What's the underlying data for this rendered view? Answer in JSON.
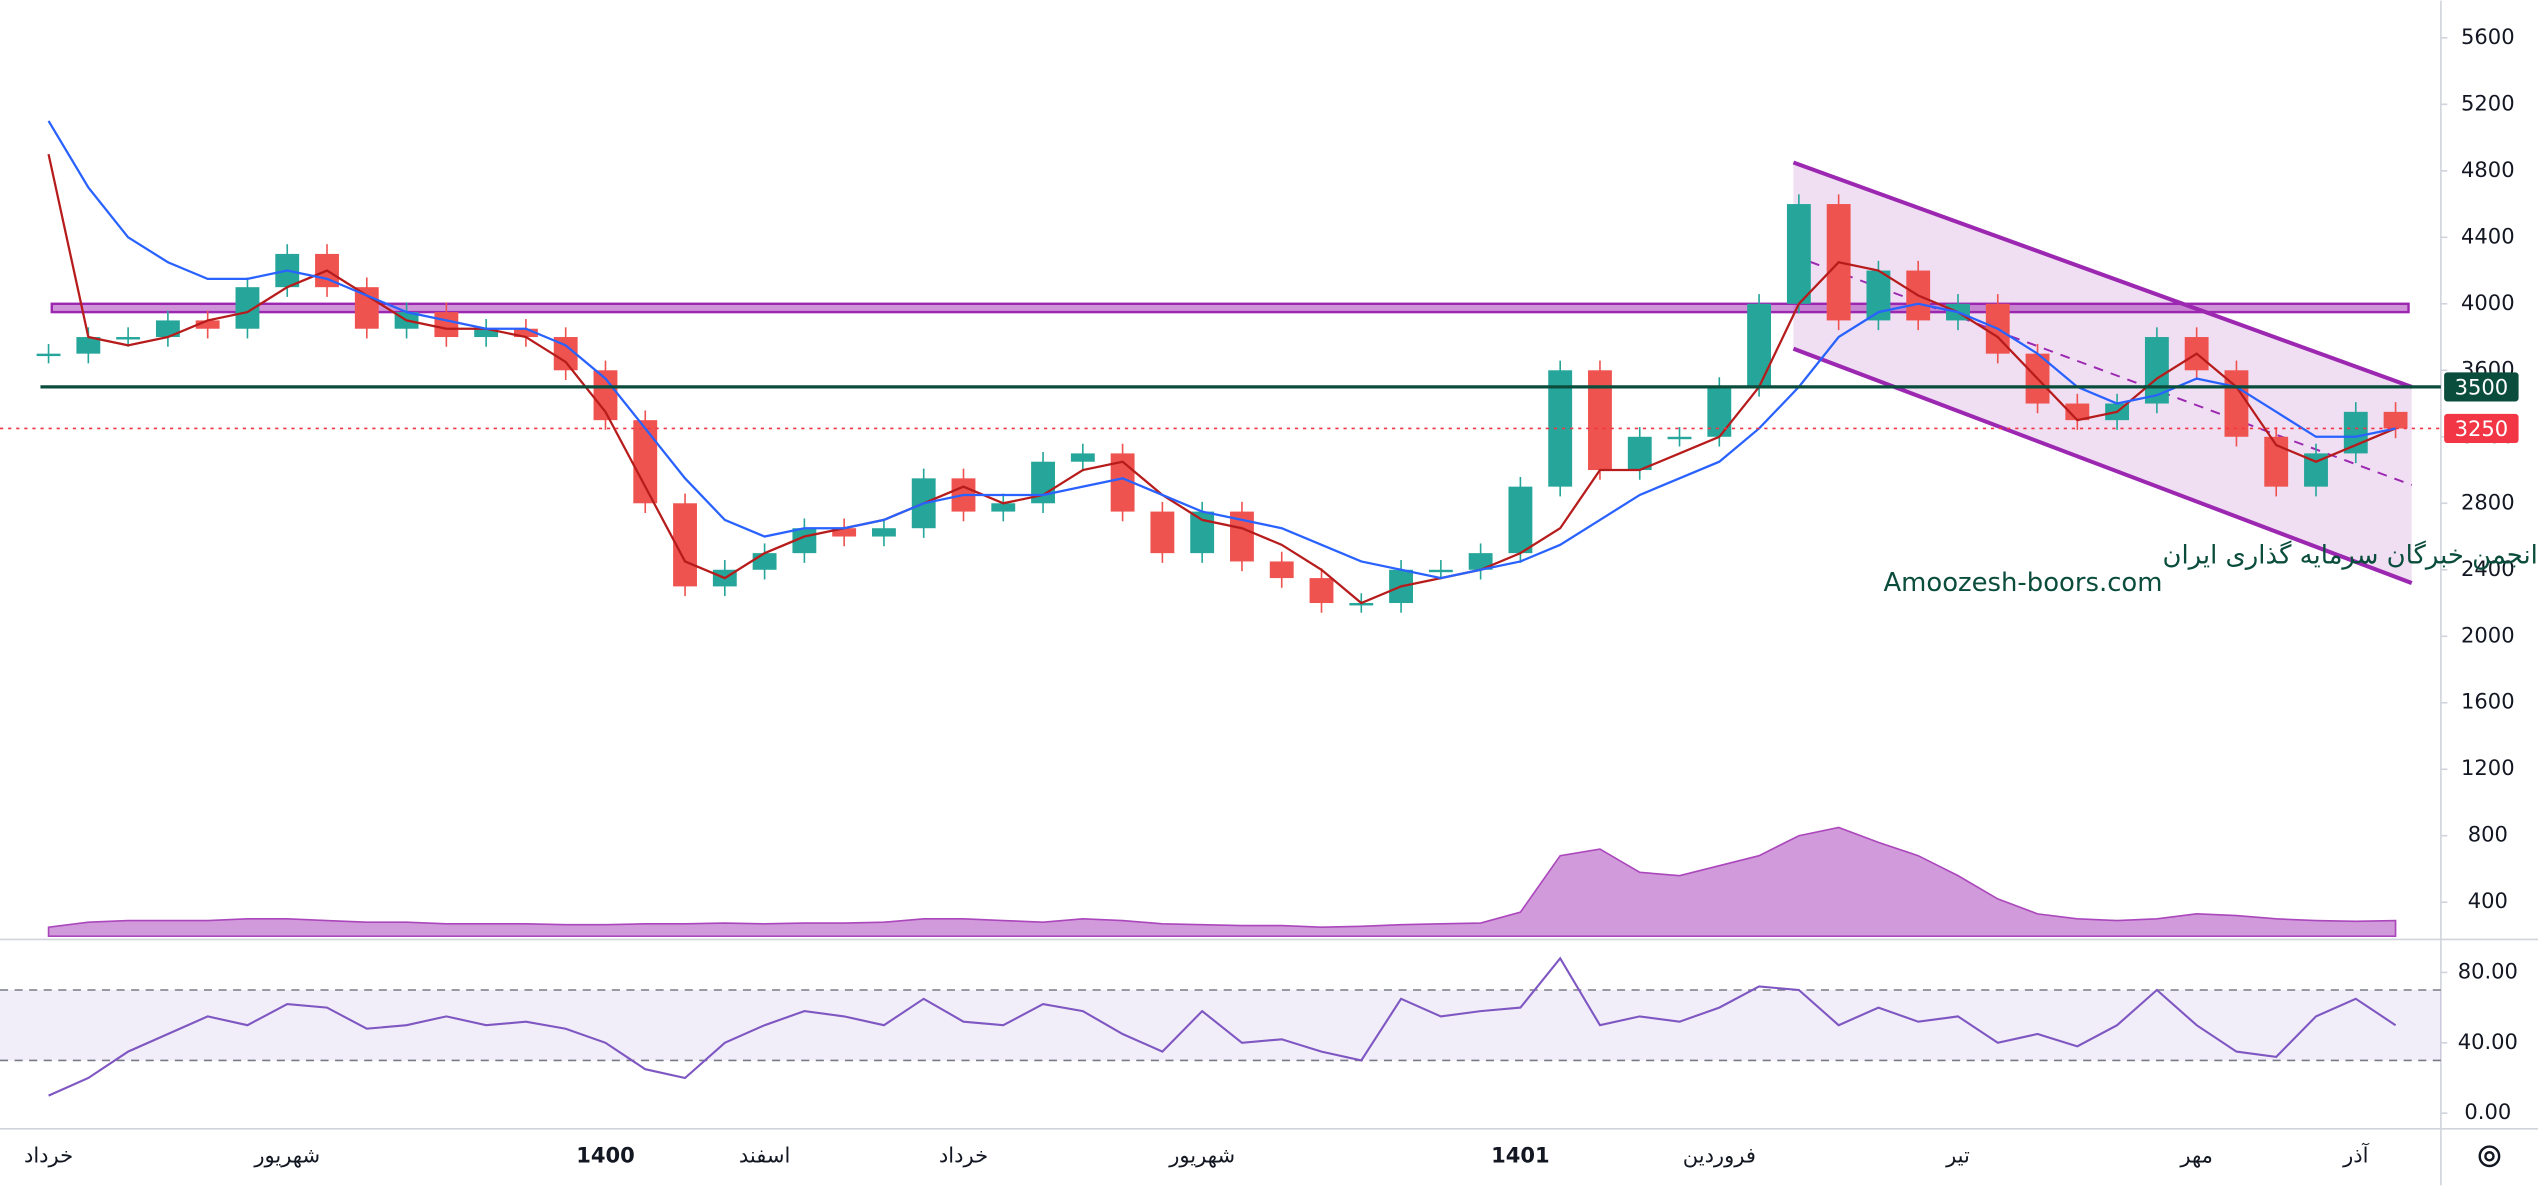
{
  "chart_data": [
    {
      "type": "candlestick",
      "categories": [
        "خرداد",
        null,
        null,
        null,
        null,
        null,
        "شهریور",
        null,
        null,
        null,
        null,
        null,
        null,
        null,
        "1400",
        null,
        null,
        null,
        "اسفند",
        null,
        null,
        null,
        null,
        "خرداد",
        null,
        null,
        null,
        null,
        null,
        "شهریور",
        null,
        null,
        null,
        null,
        null,
        null,
        null,
        "1401",
        null,
        null,
        null,
        null,
        "فروردین",
        null,
        null,
        null,
        null,
        null,
        "تیر",
        null,
        null,
        null,
        null,
        null,
        "مهر",
        null,
        null,
        null,
        "آذر",
        null
      ],
      "values": [
        3700,
        3800,
        3800,
        3900,
        3850,
        4100,
        4300,
        4100,
        3850,
        3950,
        3800,
        3850,
        3800,
        3600,
        3300,
        2800,
        2300,
        2400,
        2500,
        2650,
        2600,
        2650,
        2950,
        2750,
        2800,
        3050,
        3100,
        2750,
        2500,
        2750,
        2450,
        2350,
        2200,
        2200,
        2400,
        2400,
        2500,
        2900,
        3600,
        3000,
        3200,
        3200,
        3500,
        4000,
        4600,
        3900,
        4200,
        3900,
        4000,
        3700,
        3400,
        3300,
        3400,
        3800,
        3600,
        3200,
        2900,
        3100,
        3350,
        3250
      ],
      "up_color": "#26a69a",
      "down_color": "#ef5350",
      "series": [
        {
          "color": "#b71c1c",
          "values": [
            4900,
            3800,
            3750,
            3800,
            3900,
            3950,
            4100,
            4200,
            4050,
            3900,
            3850,
            3850,
            3800,
            3650,
            3350,
            2900,
            2450,
            2350,
            2500,
            2600,
            2650,
            2700,
            2800,
            2900,
            2800,
            2850,
            3000,
            3050,
            2850,
            2700,
            2650,
            2550,
            2400,
            2200,
            2300,
            2350,
            2400,
            2500,
            2650,
            3000,
            3000,
            3100,
            3200,
            3500,
            4000,
            4250,
            4200,
            4050,
            3950,
            3800,
            3550,
            3300,
            3350,
            3550,
            3700,
            3500,
            3150,
            3050,
            3150,
            3250
          ]
        },
        {
          "color": "#2962ff",
          "values": [
            5100,
            4700,
            4400,
            4250,
            4150,
            4150,
            4200,
            4150,
            4050,
            3950,
            3900,
            3850,
            3850,
            3750,
            3550,
            3250,
            2950,
            2700,
            2600,
            2650,
            2650,
            2700,
            2800,
            2850,
            2850,
            2850,
            2900,
            2950,
            2850,
            2750,
            2700,
            2650,
            2550,
            2450,
            2400,
            2350,
            2400,
            2450,
            2550,
            2700,
            2850,
            2950,
            3050,
            3250,
            3500,
            3800,
            3950,
            4000,
            3950,
            3850,
            3700,
            3500,
            3400,
            3450,
            3550,
            3500,
            3350,
            3200,
            3200,
            3250
          ]
        }
      ],
      "volume": {
        "color": "#ab47bc",
        "values": [
          250,
          280,
          290,
          290,
          290,
          300,
          300,
          290,
          280,
          280,
          270,
          270,
          270,
          265,
          265,
          270,
          270,
          275,
          270,
          275,
          275,
          280,
          300,
          300,
          290,
          280,
          300,
          290,
          270,
          265,
          260,
          260,
          250,
          255,
          265,
          270,
          275,
          340,
          680,
          720,
          580,
          560,
          620,
          680,
          800,
          850,
          760,
          680,
          560,
          420,
          330,
          300,
          290,
          300,
          330,
          320,
          300,
          290,
          285,
          290
        ]
      },
      "levels": [
        {
          "value": 3500,
          "color": "#0b4d3c"
        },
        {
          "value": 3250,
          "color": "#f23645"
        }
      ],
      "zone": [
        3950,
        4000
      ],
      "channel": {
        "upper": [
          4850,
          3500
        ],
        "lower": [
          3730,
          2320
        ],
        "color": "#9c27b0"
      },
      "annotations": [
        "انجمن خبرگان سرمایه گذاری ایران",
        "Amoozesh-boors.com"
      ],
      "ylim": [
        196,
        5824
      ],
      "yticks": [
        400,
        800,
        1200,
        1600,
        2000,
        2400,
        2800,
        3200,
        3600,
        4000,
        4400,
        4800,
        5200,
        5600
      ]
    },
    {
      "type": "line",
      "color": "#7e57c2",
      "values": [
        10,
        20,
        35,
        45,
        55,
        50,
        62,
        60,
        48,
        50,
        55,
        50,
        52,
        48,
        40,
        25,
        20,
        40,
        50,
        58,
        55,
        50,
        65,
        52,
        50,
        62,
        58,
        45,
        35,
        58,
        40,
        42,
        35,
        30,
        65,
        55,
        58,
        60,
        88,
        50,
        55,
        52,
        60,
        72,
        70,
        50,
        60,
        52,
        55,
        40,
        45,
        38,
        50,
        70,
        50,
        35,
        32,
        55,
        65,
        50
      ],
      "band": [
        30,
        70
      ],
      "ylim": [
        -7,
        96
      ],
      "yticks": [
        {
          "value": 0,
          "label": "0.00"
        },
        {
          "value": 40,
          "label": "40.00"
        },
        {
          "value": 80,
          "label": "80.00"
        }
      ]
    }
  ]
}
